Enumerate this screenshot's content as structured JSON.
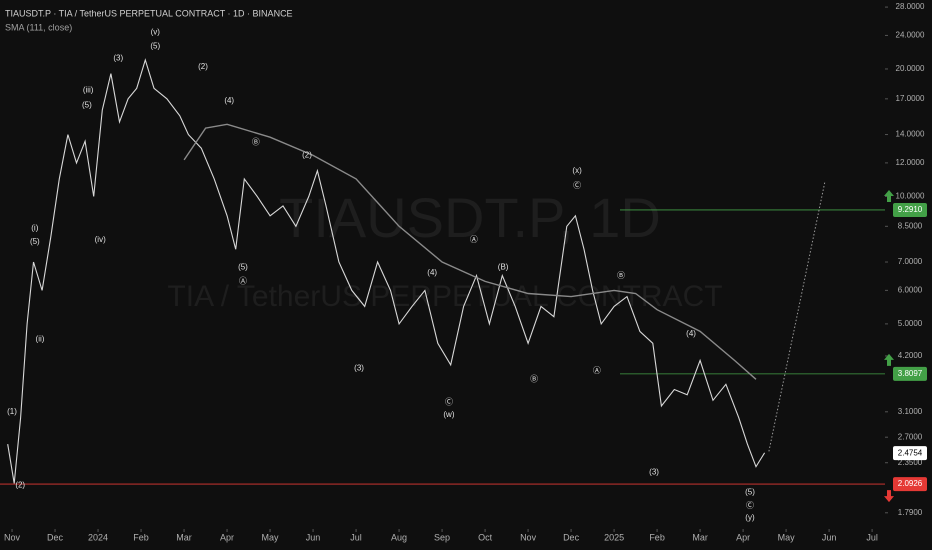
{
  "chart_data": {
    "type": "line",
    "title": "TIAUSDT.P · TIA / TetherUS PERPETUAL CONTRACT · 1D · BINANCE",
    "indicator": "SMA (111, close)",
    "watermark": "TIAUSDT.P, 1D",
    "watermark_subtitle": "TIA / TetherUS PERPETUAL CONTRACT",
    "log_scale": true,
    "xlim": [
      -0.28,
      20.3
    ],
    "xticks": [
      {
        "value": 0,
        "label": "Nov"
      },
      {
        "value": 1,
        "label": "Dec"
      },
      {
        "value": 2,
        "label": "2024"
      },
      {
        "value": 3,
        "label": "Feb"
      },
      {
        "value": 4,
        "label": "Mar"
      },
      {
        "value": 5,
        "label": "Apr"
      },
      {
        "value": 6,
        "label": "May"
      },
      {
        "value": 7,
        "label": "Jun"
      },
      {
        "value": 8,
        "label": "Jul"
      },
      {
        "value": 9,
        "label": "Aug"
      },
      {
        "value": 10,
        "label": "Sep"
      },
      {
        "value": 11,
        "label": "Oct"
      },
      {
        "value": 12,
        "label": "Nov"
      },
      {
        "value": 13,
        "label": "Dec"
      },
      {
        "value": 14,
        "label": "2025"
      },
      {
        "value": 15,
        "label": "Feb"
      },
      {
        "value": 16,
        "label": "Mar"
      },
      {
        "value": 17,
        "label": "Apr"
      },
      {
        "value": 18,
        "label": "May"
      },
      {
        "value": 19,
        "label": "Jun"
      },
      {
        "value": 20,
        "label": "Jul"
      }
    ],
    "ylim": [
      1.675,
      29.1
    ],
    "yticks": [
      {
        "value": 28,
        "label": "28.0000"
      },
      {
        "value": 24,
        "label": "24.0000"
      },
      {
        "value": 20,
        "label": "20.0000"
      },
      {
        "value": 17,
        "label": "17.0000"
      },
      {
        "value": 14,
        "label": "14.0000"
      },
      {
        "value": 12,
        "label": "12.0000"
      },
      {
        "value": 10,
        "label": "10.0000"
      },
      {
        "value": 8.5,
        "label": "8.5000"
      },
      {
        "value": 7,
        "label": "7.0000"
      },
      {
        "value": 6,
        "label": "6.0000"
      },
      {
        "value": 5,
        "label": "5.0000"
      },
      {
        "value": 4.2,
        "label": "4.2000"
      },
      {
        "value": 3.1,
        "label": "3.1000"
      },
      {
        "value": 2.7,
        "label": "2.7000"
      },
      {
        "value": 2.35,
        "label": "2.3500"
      },
      {
        "value": 1.79,
        "label": "1.7900"
      }
    ],
    "series": [
      {
        "name": "TIAUSDT.P",
        "color": "#d8d8d8",
        "x": [
          -0.1,
          0.05,
          0.2,
          0.35,
          0.5,
          0.7,
          0.9,
          1.1,
          1.3,
          1.5,
          1.7,
          1.9,
          2.1,
          2.3,
          2.5,
          2.7,
          2.9,
          3.1,
          3.3,
          3.6,
          3.9,
          4.1,
          4.4,
          4.7,
          5.0,
          5.2,
          5.4,
          5.7,
          6.0,
          6.3,
          6.6,
          6.9,
          7.1,
          7.3,
          7.6,
          7.9,
          8.2,
          8.5,
          8.8,
          9.0,
          9.3,
          9.6,
          9.9,
          10.2,
          10.5,
          10.8,
          11.1,
          11.4,
          11.7,
          12.0,
          12.3,
          12.6,
          12.9,
          13.1,
          13.3,
          13.5,
          13.7,
          14.0,
          14.3,
          14.6,
          14.9,
          15.1,
          15.4,
          15.7,
          16.0,
          16.3,
          16.6,
          16.9,
          17.1,
          17.3,
          17.5
        ],
        "values": [
          2.6,
          2.1,
          3.0,
          5.0,
          7.0,
          6.0,
          8.0,
          11.0,
          14.0,
          12.0,
          13.5,
          10.0,
          16.0,
          19.5,
          15.0,
          17.0,
          18.0,
          21.0,
          18.0,
          17.0,
          15.5,
          14.0,
          13.0,
          11.0,
          9.0,
          7.5,
          11.0,
          10.0,
          9.0,
          9.5,
          8.5,
          10.0,
          11.5,
          9.5,
          7.0,
          6.0,
          5.5,
          7.0,
          6.0,
          5.0,
          5.5,
          6.0,
          4.5,
          4.0,
          5.5,
          6.5,
          5.0,
          6.5,
          5.5,
          4.5,
          5.5,
          5.2,
          8.5,
          9.0,
          7.5,
          6.0,
          5.0,
          5.5,
          5.8,
          4.8,
          4.5,
          3.2,
          3.5,
          3.4,
          4.1,
          3.3,
          3.6,
          3.0,
          2.6,
          2.3,
          2.48
        ]
      },
      {
        "name": "SMA (111, close)",
        "color": "#8a8a8a",
        "x": [
          4.0,
          4.5,
          5.0,
          6.0,
          7.0,
          8.0,
          9.0,
          10.0,
          11.0,
          12.0,
          13.0,
          14.0,
          14.5,
          15.0,
          16.0,
          16.8,
          17.3
        ],
        "values": [
          12.2,
          14.5,
          14.8,
          13.8,
          12.5,
          11.0,
          8.5,
          7.0,
          6.3,
          5.9,
          5.8,
          6.0,
          5.9,
          5.4,
          4.8,
          4.1,
          3.7
        ]
      }
    ],
    "projection": {
      "x": [
        17.6,
        18.9
      ],
      "values": [
        2.5,
        10.8
      ]
    },
    "levels": [
      {
        "value": 9.291,
        "label": "9.2910",
        "color": "#43a047"
      },
      {
        "value": 3.8097,
        "label": "3.8097",
        "color": "#43a047"
      },
      {
        "value": 2.4754,
        "label": "2.4754",
        "color": "#ffffff"
      },
      {
        "value": 2.0926,
        "label": "2.0926",
        "color": "#e53935"
      }
    ],
    "annotations": [
      {
        "text": "(v)",
        "x": 3.33,
        "y": 24.4
      },
      {
        "text": "(5)",
        "x": 3.33,
        "y": 22.6
      },
      {
        "text": "(3)",
        "x": 2.47,
        "y": 21.2
      },
      {
        "text": "(iii)",
        "x": 1.77,
        "y": 17.8
      },
      {
        "text": "(5)",
        "x": 1.74,
        "y": 16.4
      },
      {
        "text": "(i)",
        "x": 0.53,
        "y": 8.4
      },
      {
        "text": "(5)",
        "x": 0.53,
        "y": 7.8
      },
      {
        "text": "(ii)",
        "x": 0.65,
        "y": 4.6
      },
      {
        "text": "(1)",
        "x": 0,
        "y": 3.1
      },
      {
        "text": "(2)",
        "x": 0.19,
        "y": 2.08
      },
      {
        "text": "(iv)",
        "x": 2.05,
        "y": 7.9
      },
      {
        "text": "(2)",
        "x": 4.44,
        "y": 20.2
      },
      {
        "text": "(4)",
        "x": 5.05,
        "y": 16.8
      },
      {
        "text": "Ⓑ",
        "x": 5.67,
        "y": 13.4
      },
      {
        "text": "(5)",
        "x": 5.37,
        "y": 6.8
      },
      {
        "text": "Ⓐ",
        "x": 5.37,
        "y": 6.3
      },
      {
        "text": "(2)",
        "x": 6.86,
        "y": 12.5
      },
      {
        "text": "(3)",
        "x": 8.07,
        "y": 3.93
      },
      {
        "text": "(4)",
        "x": 9.77,
        "y": 6.6
      },
      {
        "text": "Ⓒ",
        "x": 10.16,
        "y": 3.26
      },
      {
        "text": "(w)",
        "x": 10.16,
        "y": 3.05
      },
      {
        "text": "Ⓐ",
        "x": 10.74,
        "y": 7.9
      },
      {
        "text": "(B)",
        "x": 11.42,
        "y": 6.8
      },
      {
        "text": "Ⓑ",
        "x": 12.14,
        "y": 3.7
      },
      {
        "text": "(x)",
        "x": 13.14,
        "y": 11.5
      },
      {
        "text": "Ⓒ",
        "x": 13.14,
        "y": 10.6
      },
      {
        "text": "Ⓑ",
        "x": 14.16,
        "y": 6.5
      },
      {
        "text": "Ⓐ",
        "x": 13.6,
        "y": 3.87
      },
      {
        "text": "(4)",
        "x": 15.79,
        "y": 4.74
      },
      {
        "text": "(3)",
        "x": 14.93,
        "y": 2.23
      },
      {
        "text": "(5)",
        "x": 17.16,
        "y": 2.0
      },
      {
        "text": "Ⓒ",
        "x": 17.16,
        "y": 1.86
      },
      {
        "text": "(y)",
        "x": 17.16,
        "y": 1.74
      }
    ]
  }
}
